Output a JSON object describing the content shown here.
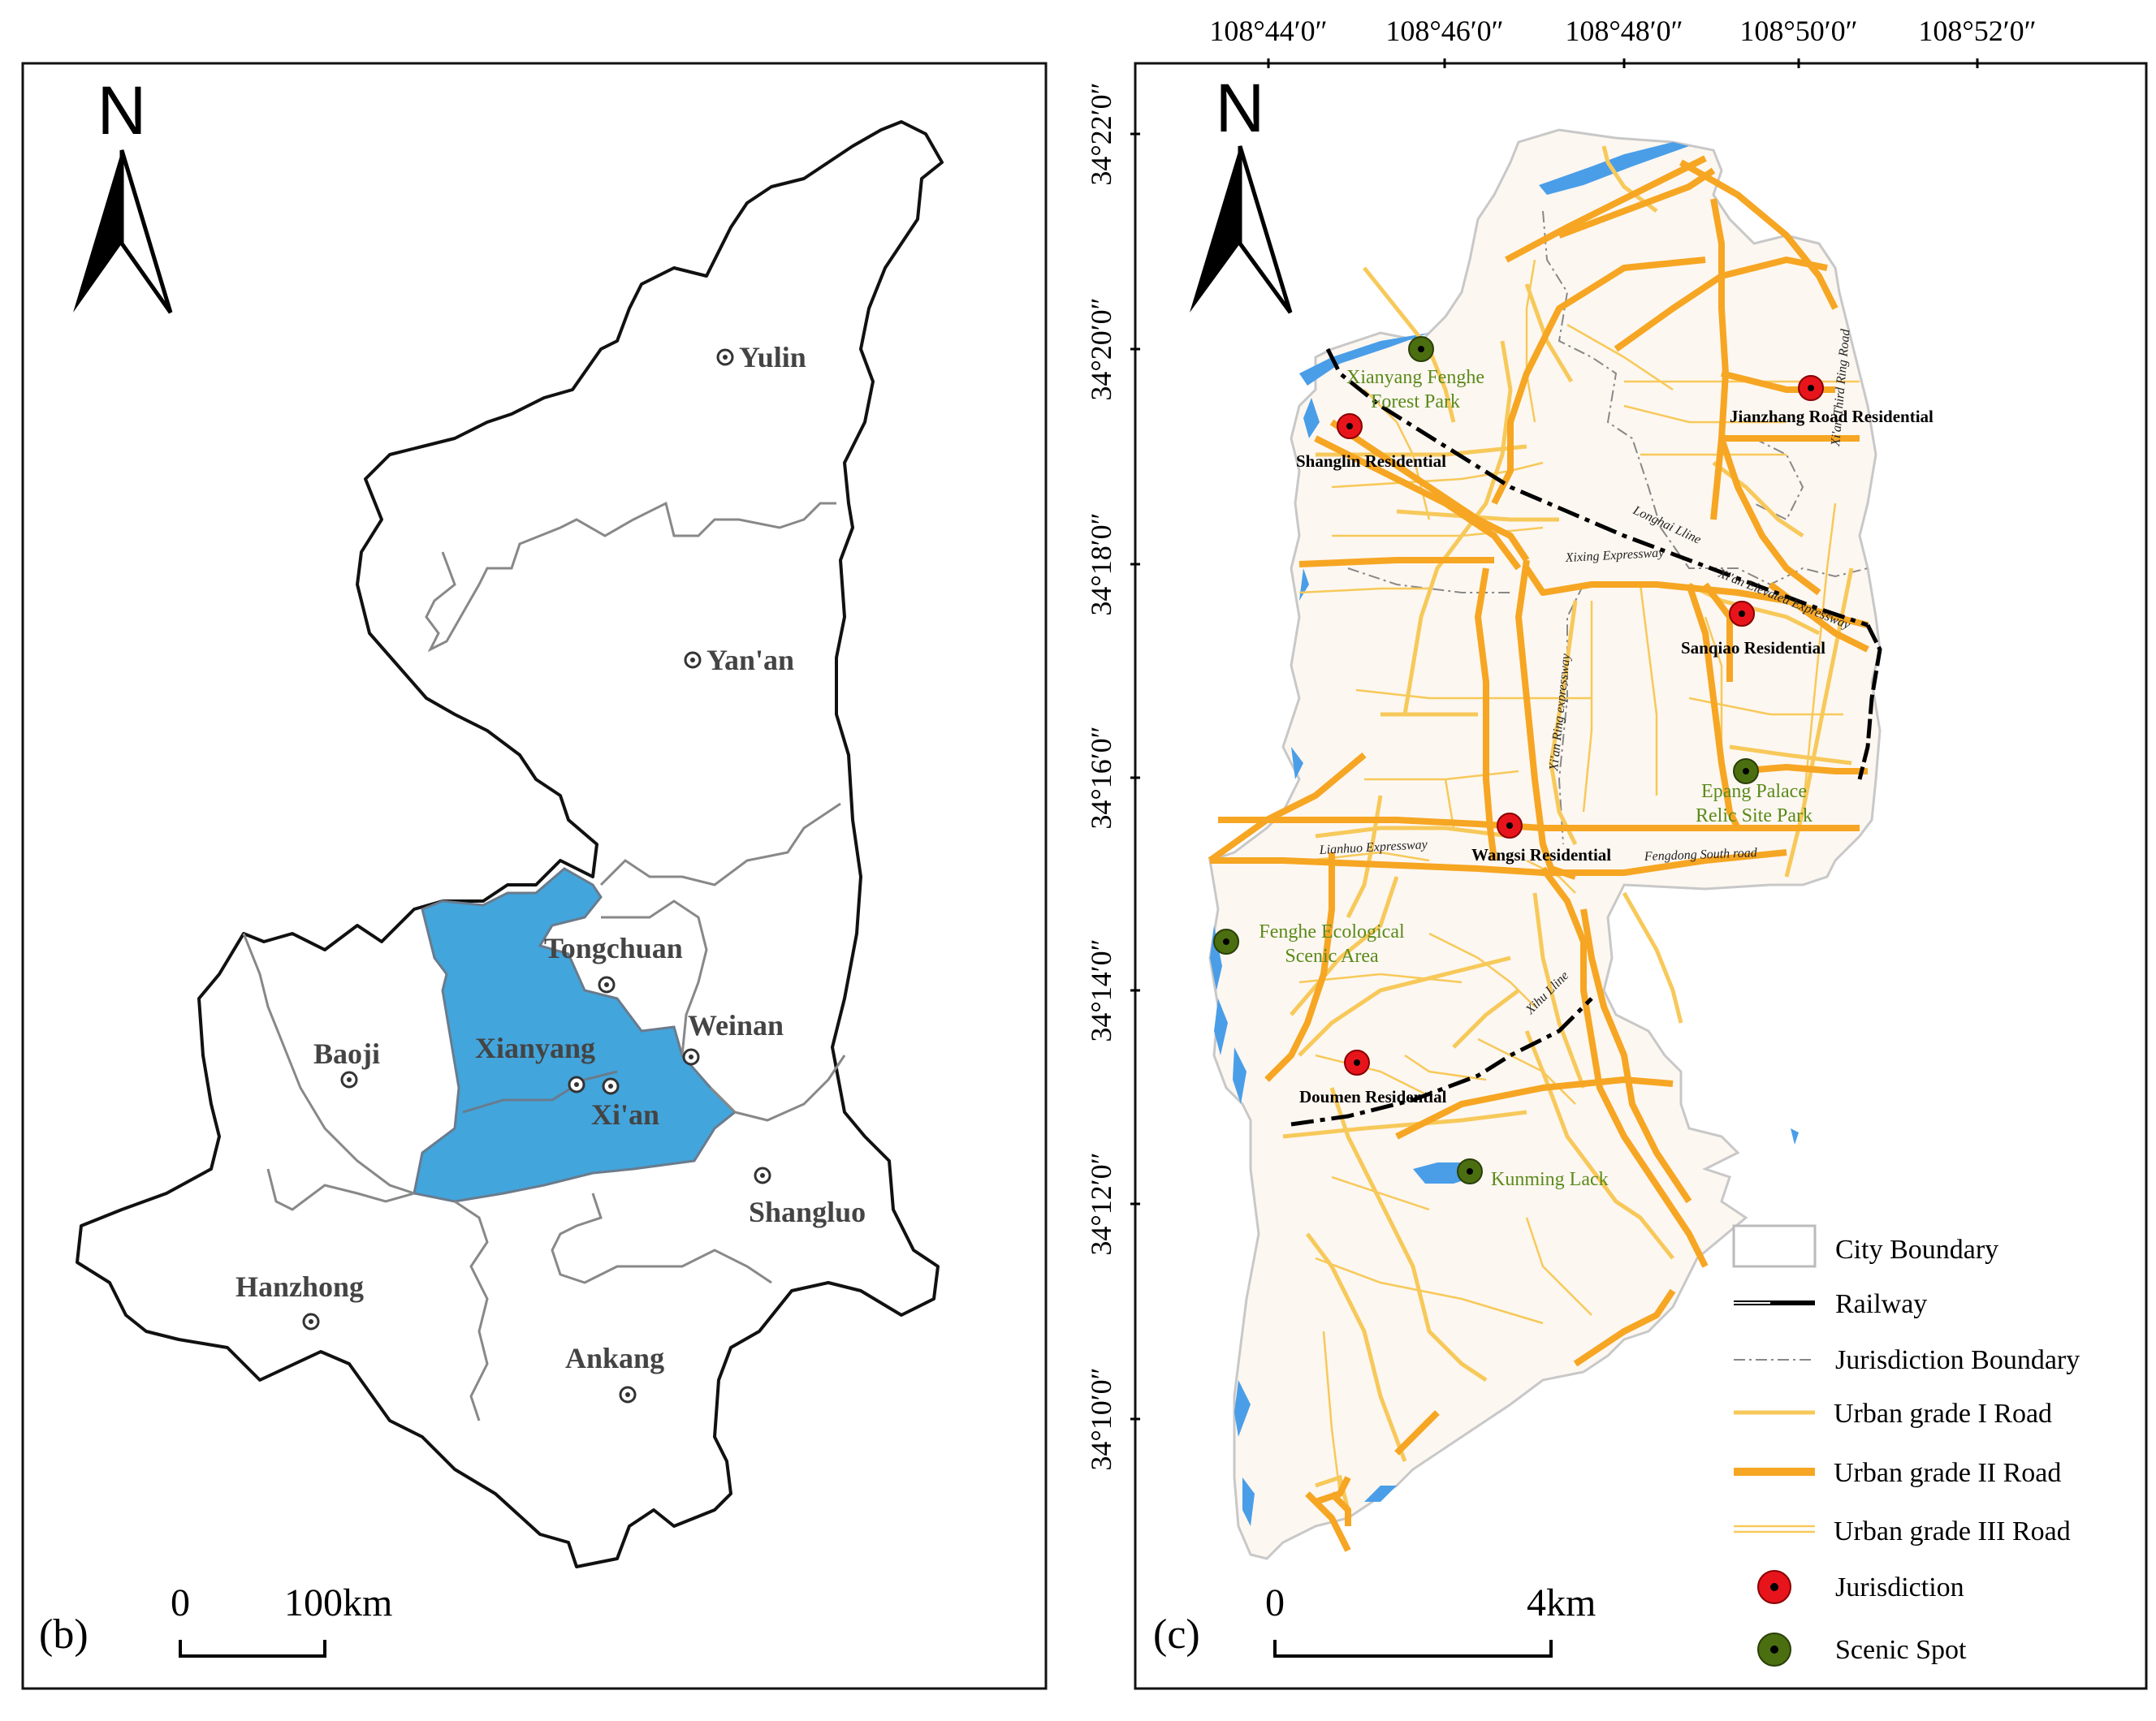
{
  "left_map": {
    "panel_label": "(b)",
    "north": "N",
    "scale": {
      "zero": "0",
      "distance": "100km"
    },
    "cities": [
      {
        "name": "Yulin"
      },
      {
        "name": "Yan'an"
      },
      {
        "name": "Tongchuan"
      },
      {
        "name": "Weinan"
      },
      {
        "name": "Baoji"
      },
      {
        "name": "Xianyang"
      },
      {
        "name": "Xi'an"
      },
      {
        "name": "Shangluo"
      },
      {
        "name": "Hanzhong"
      },
      {
        "name": "Ankang"
      }
    ],
    "highlight_color": "#42a5dc"
  },
  "right_map": {
    "panel_label": "(c)",
    "north": "N",
    "scale": {
      "zero": "0",
      "distance": "4km"
    },
    "lon_labels": [
      "108°44′0″",
      "108°46′0″",
      "108°48′0″",
      "108°50′0″",
      "108°52′0″"
    ],
    "lat_labels": [
      "34°22′0″",
      "34°20′0″",
      "34°18′0″",
      "34°16′0″",
      "34°14′0″",
      "34°12′0″",
      "34°10′0″"
    ],
    "jurisdictions": [
      {
        "name": "Jianzhang Road Residential"
      },
      {
        "name": "Shanglin Residential"
      },
      {
        "name": "Sanqiao Residential"
      },
      {
        "name": "Wangsi Residential"
      },
      {
        "name": "Doumen Residential"
      }
    ],
    "scenic_spots": [
      {
        "name_line1": "Xianyang Fenghe",
        "name_line2": "Forest Park"
      },
      {
        "name_line1": "Epang Palace",
        "name_line2": "Relic Site Park"
      },
      {
        "name_line1": "Fenghe Ecological",
        "name_line2": "Scenic Area"
      },
      {
        "name_line1": "Kunming Lack",
        "name_line2": ""
      }
    ],
    "road_labels": {
      "longhai": "Longhai Lline",
      "xixing": "Xixing Expressway",
      "elevated": "Xi'an Elevated Expressway",
      "third_ring": "Xi'an Third Ring Road",
      "ring_expressway": "Xi'an Ring expressway",
      "lianhuo": "Lianhuo Expressway",
      "fengdong": "Fengdong South road",
      "xihu": "Xihu Lline"
    },
    "legend": [
      {
        "label": "City Boundary",
        "symbol": "city-boundary"
      },
      {
        "label": "Railway",
        "symbol": "railway"
      },
      {
        "label": "Jurisdiction Boundary",
        "symbol": "jurisdiction-boundary"
      },
      {
        "label": "Urban grade I Road",
        "symbol": "road-1"
      },
      {
        "label": "Urban grade II Road",
        "symbol": "road-2"
      },
      {
        "label": "Urban grade III Road",
        "symbol": "road-3"
      },
      {
        "label": "Jurisdiction",
        "symbol": "jurisdiction-point"
      },
      {
        "label": "Scenic Spot",
        "symbol": "scenic-point"
      }
    ],
    "colors": {
      "land": "#fdf7f1",
      "road_major": "#f6a623",
      "road_minor": "#f7c95a",
      "water": "#4a9ee8",
      "jurisdiction": "#e8141c",
      "scenic": "#4b6f10",
      "scenic_text": "#5a8a1a"
    }
  }
}
